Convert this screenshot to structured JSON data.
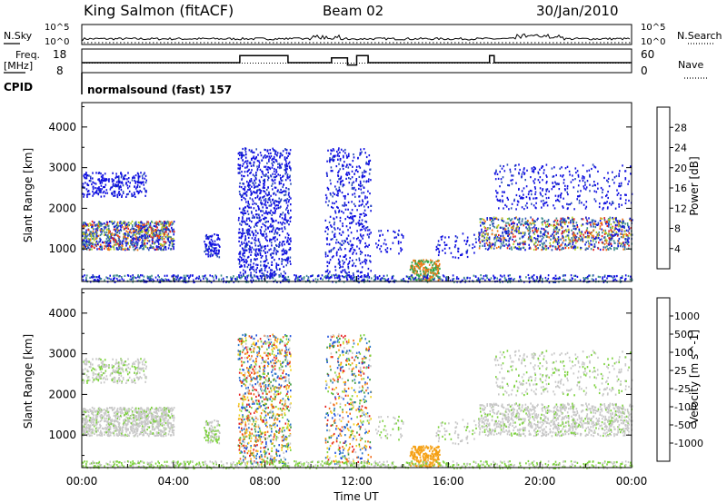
{
  "header": {
    "station": "King Salmon (fitACF)",
    "beam": "Beam 02",
    "date": "30/Jan/2010"
  },
  "chart_data": [
    {
      "type": "line",
      "panel": "noise",
      "ylabel_left": "N.Sky",
      "ylabel_right": "N.Search",
      "left_ticks": [
        "10^5",
        "10^0"
      ],
      "right_ticks": [
        "10^5",
        "10^0"
      ]
    },
    {
      "type": "line",
      "panel": "frequency",
      "ylabel_left": "Freq.",
      "ylabel_left_unit": "[MHz]",
      "ylabel_right": "Nave",
      "left_ticks": [
        "18",
        "8"
      ],
      "right_ticks": [
        "60",
        "0"
      ],
      "cpid_label": "CPID",
      "program": "normalsound (fast) 157",
      "freq_segments": [
        [
          0,
          13
        ],
        [
          6.9,
          13
        ],
        [
          6.9,
          16
        ],
        [
          9,
          16
        ],
        [
          9,
          13
        ],
        [
          10.9,
          13
        ],
        [
          10.9,
          15
        ],
        [
          11.6,
          15
        ],
        [
          11.6,
          12
        ],
        [
          12,
          12
        ],
        [
          12,
          16
        ],
        [
          12.5,
          16
        ],
        [
          12.5,
          13
        ],
        [
          17.8,
          13
        ],
        [
          17.8,
          16
        ],
        [
          18,
          16
        ],
        [
          18,
          13
        ],
        [
          24,
          13
        ]
      ]
    },
    {
      "type": "heatmap",
      "panel": "power",
      "ylabel": "Slant Range [km]",
      "yticks": [
        "1000",
        "2000",
        "3000",
        "4000"
      ],
      "ylim": [
        200,
        4600
      ],
      "colorbar_label": "Power [dB]",
      "colorbar_ticks": [
        "4",
        "8",
        "12",
        "16",
        "20",
        "24",
        "28"
      ],
      "colorbar_colors": [
        "#1010e0",
        "#2a4fb8",
        "#3c8a8a",
        "#2ea64a",
        "#b4d21e",
        "#f0b414",
        "#f07814",
        "#e61e1e"
      ]
    },
    {
      "type": "heatmap",
      "panel": "velocity",
      "ylabel": "Slant Range [km]",
      "yticks": [
        "1000",
        "2000",
        "3000",
        "4000"
      ],
      "ylim": [
        200,
        4600
      ],
      "colorbar_label": "Velocity [m s^-1]",
      "colorbar_ticks": [
        "1000",
        "500",
        "100",
        "25",
        "-25",
        "-100",
        "-500",
        "-1000"
      ],
      "colorbar_colors": [
        "#1e50dc",
        "#2e7ac8",
        "#3c9a3c",
        "#7cd23c",
        "#c8c8c8",
        "#f0d21e",
        "#f5a014",
        "#f06414",
        "#e61e1e"
      ],
      "xticks": [
        "00:00",
        "04:00",
        "08:00",
        "12:00",
        "16:00",
        "20:00",
        "00:00"
      ],
      "xlabel": "Time UT"
    }
  ]
}
